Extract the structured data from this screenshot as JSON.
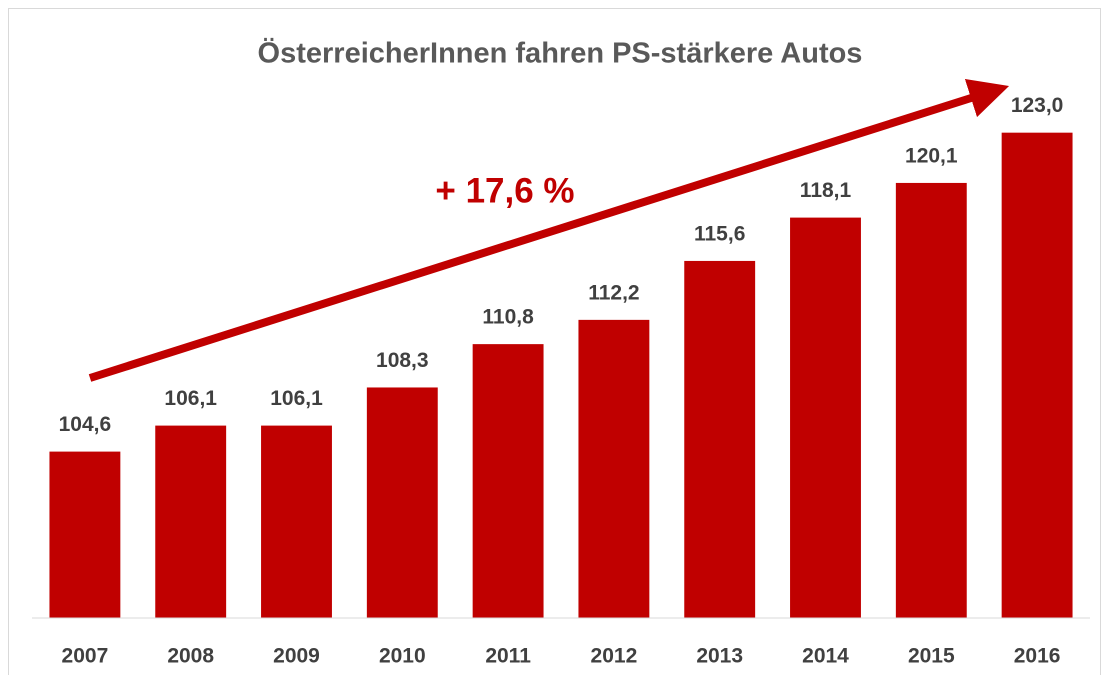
{
  "chart_data": {
    "type": "bar",
    "title": "ÖsterreicherInnen fahren PS-stärkere Autos",
    "annotation": "+ 17,6 %",
    "categories": [
      "2007",
      "2008",
      "2009",
      "2010",
      "2011",
      "2012",
      "2013",
      "2014",
      "2015",
      "2016"
    ],
    "values": [
      104.6,
      106.1,
      106.1,
      108.3,
      110.8,
      112.2,
      115.6,
      118.1,
      120.1,
      123.0
    ],
    "value_labels": [
      "104,6",
      "106,1",
      "106,1",
      "108,3",
      "110,8",
      "112,2",
      "115,6",
      "118,1",
      "120,1",
      "123,0"
    ],
    "color": "#c00000",
    "ylim": [
      95,
      125
    ]
  }
}
